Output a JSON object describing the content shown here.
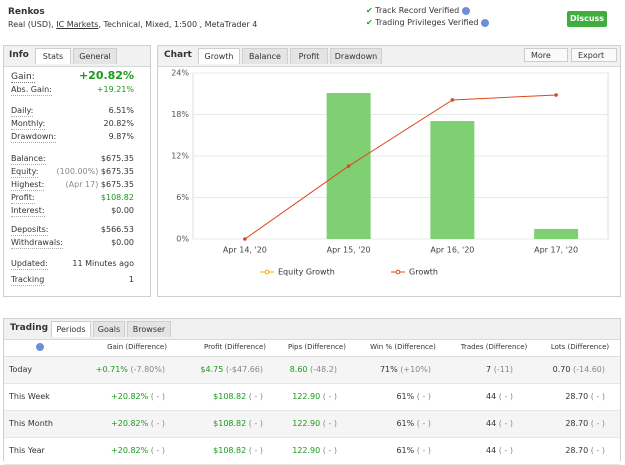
{
  "header": {
    "title": "Renkos",
    "account_prefix": "Real (USD),",
    "broker": "IC Markets",
    "account_suffix": ", Technical, Mixed, 1:500 , MetaTrader 4",
    "badges": [
      "Track Record Verified",
      "Trading Privileges Verified"
    ],
    "button": "Discuss"
  },
  "info_panel": {
    "title": "Info",
    "tabs": [
      "Stats",
      "General"
    ],
    "gain": {
      "label": "Gain:",
      "value": "+20.82%"
    },
    "sections": [
      [
        {
          "label": "Abs. Gain:",
          "value": "+19.21%"
        }
      ],
      [
        {
          "label": "Daily:",
          "value": "6.51%"
        },
        {
          "label": "Monthly:",
          "value": "20.82%"
        },
        {
          "label": "Drawdown:",
          "value": "9.87%"
        }
      ],
      [
        {
          "label": "Balance:",
          "value": "$675.35"
        },
        {
          "label": "Equity:",
          "note": "(100.00%)",
          "value": "$675.35"
        },
        {
          "label": "Highest:",
          "note": "(Apr 17)",
          "value": "$675.35"
        },
        {
          "label": "Profit:",
          "value": "$108.82"
        },
        {
          "label": "Interest:",
          "value": "$0.00"
        }
      ],
      [
        {
          "label": "Deposits:",
          "value": "$566.53"
        },
        {
          "label": "Withdrawals:",
          "value": "$0.00"
        }
      ],
      [
        {
          "label": "Updated:",
          "value": "11 Minutes ago"
        },
        {
          "label": "Tracking",
          "value": "1"
        }
      ]
    ]
  },
  "chart_panel": {
    "title": "Chart",
    "tabs": [
      "Growth",
      "Balance",
      "Profit",
      "Drawdown"
    ],
    "buttons": [
      "More",
      "Export"
    ]
  },
  "chart_data": {
    "type": "combo",
    "categories": [
      "Apr 14, '20",
      "Apr 15, '20",
      "Apr 16, '20",
      "Apr 17, '20"
    ],
    "bars": {
      "color": "#7fcf73",
      "values": [
        null,
        21.1,
        17.05,
        1.45
      ]
    },
    "series": [
      {
        "name": "Equity Growth",
        "color": "#f0b400",
        "values": [
          null,
          null,
          null,
          null
        ]
      },
      {
        "name": "Growth",
        "color": "#e0461e",
        "values": [
          0,
          10.55,
          20.1,
          20.82
        ]
      }
    ],
    "ylim": [
      0,
      24
    ],
    "yticks": [
      {
        "value": 0,
        "label": "0%"
      },
      {
        "value": 6,
        "label": "6%"
      },
      {
        "value": 12,
        "label": "12%"
      },
      {
        "value": 18,
        "label": "18%"
      },
      {
        "value": 24,
        "label": "24%"
      }
    ],
    "grid": true
  },
  "trading_panel": {
    "title": "Trading",
    "tabs": [
      "Periods",
      "Goals",
      "Browser"
    ],
    "columns": [
      "Gain (Difference)",
      "Profit (Difference)",
      "Pips (Difference)",
      "Win % (Difference)",
      "Trades (Difference)",
      "Lots (Difference)"
    ],
    "rows": [
      {
        "period": "Today",
        "cells": [
          [
            "+0.71%",
            "(-7.80%)"
          ],
          [
            "$4.75",
            "(-$47.66)"
          ],
          [
            "8.60",
            "(-48.2)"
          ],
          [
            "71%",
            "(+10%)"
          ],
          [
            "7",
            "(-11)"
          ],
          [
            "0.70",
            "(-14.60)"
          ]
        ]
      },
      {
        "period": "This Week",
        "cells": [
          [
            "+20.82%",
            "( - )"
          ],
          [
            "$108.82",
            "( - )"
          ],
          [
            "122.90",
            "( - )"
          ],
          [
            "61%",
            "( - )"
          ],
          [
            "44",
            "( - )"
          ],
          [
            "28.70",
            "( - )"
          ]
        ]
      },
      {
        "period": "This Month",
        "cells": [
          [
            "+20.82%",
            "( - )"
          ],
          [
            "$108.82",
            "( - )"
          ],
          [
            "122.90",
            "( - )"
          ],
          [
            "61%",
            "( - )"
          ],
          [
            "44",
            "( - )"
          ],
          [
            "28.70",
            "( - )"
          ]
        ]
      },
      {
        "period": "This Year",
        "cells": [
          [
            "+20.82%",
            "( - )"
          ],
          [
            "$108.82",
            "( - )"
          ],
          [
            "122.90",
            "( - )"
          ],
          [
            "61%",
            "( - )"
          ],
          [
            "44",
            "( - )"
          ],
          [
            "28.70",
            "( - )"
          ]
        ]
      }
    ]
  }
}
